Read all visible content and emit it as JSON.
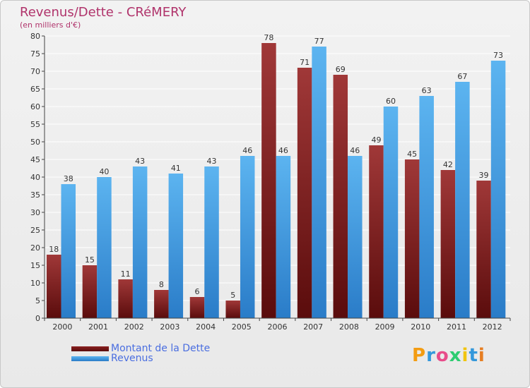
{
  "header": {
    "title": "Revenus/Dette - CRéMERY",
    "subtitle": "(en milliers d'€)"
  },
  "legend": {
    "items": [
      {
        "label": "Montant de la Dette",
        "color": "#7a1c1c"
      },
      {
        "label": "Revenus",
        "color": "#3a98e0"
      }
    ]
  },
  "logo": {
    "text": "Proxiti",
    "letters": [
      {
        "ch": "P",
        "color": "#f39c12"
      },
      {
        "ch": "r",
        "color": "#3498db"
      },
      {
        "ch": "o",
        "color": "#e84c8a"
      },
      {
        "ch": "x",
        "color": "#2ecc71"
      },
      {
        "ch": "i",
        "color": "#f1c40f"
      },
      {
        "ch": "t",
        "color": "#3498db"
      },
      {
        "ch": "i",
        "color": "#e67e22"
      }
    ]
  },
  "chart_data": {
    "type": "bar",
    "title": "Revenus/Dette - CRéMERY",
    "ylabel": "(en milliers d'€)",
    "categories": [
      "2000",
      "2001",
      "2002",
      "2003",
      "2004",
      "2005",
      "2006",
      "2007",
      "2008",
      "2009",
      "2010",
      "2011",
      "2012"
    ],
    "series": [
      {
        "name": "Montant de la Dette",
        "values": [
          18,
          15,
          11,
          8,
          6,
          5,
          78,
          71,
          69,
          49,
          45,
          42,
          39
        ],
        "color": "#7a1c1c"
      },
      {
        "name": "Revenus",
        "values": [
          38,
          40,
          43,
          41,
          43,
          46,
          46,
          77,
          46,
          60,
          63,
          67,
          73
        ],
        "color": "#3a98e0"
      }
    ],
    "ylim": [
      0,
      80
    ],
    "yticks": [
      0,
      5,
      10,
      15,
      20,
      25,
      30,
      35,
      40,
      45,
      50,
      55,
      60,
      65,
      70,
      75,
      80
    ],
    "grid": true,
    "legend_position": "bottom-left"
  }
}
